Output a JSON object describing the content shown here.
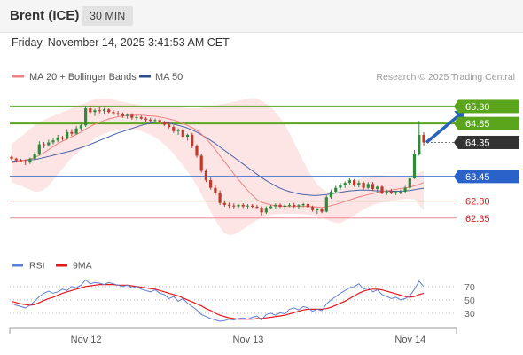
{
  "header": {
    "instrument": "Brent (ICE)",
    "timeframe": "30 MIN",
    "timestamp": "Friday, November 14, 2025 3:41:53 AM CET"
  },
  "legend": {
    "ma20_label": "MA 20 + Bollinger Bands",
    "ma50_label": "MA 50",
    "credit": "Research © 2025 Trading Central",
    "rsi_label": "RSI",
    "rsi_ma_label": "9MA"
  },
  "colors": {
    "candle_up": "#2e8b3a",
    "candle_down": "#c0392b",
    "bollinger_fill": "#fde2e2",
    "ma20": "#f08080",
    "ma50": "#4a63a8",
    "resistance": "#5aa51c",
    "pivot": "#2a62c9",
    "support": "#e88a8a",
    "last_price": "#333333",
    "rsi": "#5b7fd6",
    "rsi_ma": "#e8141a",
    "arrow": "#2962b9"
  },
  "chart_data": [
    {
      "type": "candlestick",
      "x_labels": [
        "Nov 12",
        "Nov 13",
        "Nov 14"
      ],
      "ylim": [
        61.9,
        65.65
      ],
      "candles_ohlc": [
        [
          63.97,
          64.0,
          63.88,
          63.92
        ],
        [
          63.92,
          63.95,
          63.84,
          63.88
        ],
        [
          63.88,
          63.92,
          63.82,
          63.85
        ],
        [
          63.85,
          63.9,
          63.75,
          63.82
        ],
        [
          63.82,
          63.95,
          63.78,
          63.92
        ],
        [
          63.92,
          64.1,
          63.88,
          64.05
        ],
        [
          64.05,
          64.38,
          64.0,
          64.3
        ],
        [
          64.3,
          64.36,
          64.2,
          64.28
        ],
        [
          64.28,
          64.42,
          64.24,
          64.35
        ],
        [
          64.35,
          64.48,
          64.3,
          64.4
        ],
        [
          64.4,
          64.55,
          64.35,
          64.48
        ],
        [
          64.48,
          64.52,
          64.4,
          64.45
        ],
        [
          64.45,
          64.7,
          64.42,
          64.62
        ],
        [
          64.62,
          64.7,
          64.52,
          64.58
        ],
        [
          64.58,
          64.78,
          64.55,
          64.72
        ],
        [
          64.72,
          64.85,
          64.65,
          64.8
        ],
        [
          64.8,
          65.3,
          64.76,
          65.25
        ],
        [
          65.25,
          65.32,
          65.1,
          65.15
        ],
        [
          65.15,
          65.24,
          65.05,
          65.2
        ],
        [
          65.2,
          65.28,
          65.12,
          65.18
        ],
        [
          65.18,
          65.26,
          65.1,
          65.22
        ],
        [
          65.22,
          65.25,
          65.12,
          65.15
        ],
        [
          65.15,
          65.2,
          65.08,
          65.12
        ],
        [
          65.12,
          65.18,
          65.05,
          65.1
        ],
        [
          65.1,
          65.14,
          65.0,
          65.05
        ],
        [
          65.05,
          65.12,
          64.98,
          65.08
        ],
        [
          65.08,
          65.12,
          64.95,
          65.0
        ],
        [
          65.0,
          65.06,
          64.94,
          65.02
        ],
        [
          65.02,
          65.06,
          64.95,
          64.98
        ],
        [
          64.98,
          65.02,
          64.9,
          64.95
        ],
        [
          64.95,
          65.0,
          64.88,
          64.92
        ],
        [
          64.92,
          64.98,
          64.86,
          64.94
        ],
        [
          64.94,
          64.98,
          64.85,
          64.88
        ],
        [
          64.88,
          64.92,
          64.78,
          64.82
        ],
        [
          64.82,
          64.88,
          64.72,
          64.76
        ],
        [
          64.76,
          64.8,
          64.6,
          64.65
        ],
        [
          64.65,
          64.72,
          64.55,
          64.68
        ],
        [
          64.68,
          64.72,
          64.45,
          64.5
        ],
        [
          64.5,
          64.58,
          64.4,
          64.55
        ],
        [
          64.55,
          64.6,
          64.2,
          64.25
        ],
        [
          64.25,
          64.3,
          63.95,
          64.0
        ],
        [
          64.0,
          64.05,
          63.55,
          63.6
        ],
        [
          63.6,
          63.65,
          63.3,
          63.35
        ],
        [
          63.35,
          63.42,
          63.1,
          63.15
        ],
        [
          63.15,
          63.22,
          62.95,
          63.02
        ],
        [
          63.02,
          63.08,
          62.7,
          62.75
        ],
        [
          62.75,
          62.82,
          62.65,
          62.7
        ],
        [
          62.7,
          62.76,
          62.62,
          62.68
        ],
        [
          62.68,
          62.74,
          62.6,
          62.66
        ],
        [
          62.66,
          62.72,
          62.62,
          62.7
        ],
        [
          62.7,
          62.74,
          62.62,
          62.66
        ],
        [
          62.66,
          62.72,
          62.6,
          62.68
        ],
        [
          62.68,
          62.72,
          62.62,
          62.65
        ],
        [
          62.65,
          62.7,
          62.58,
          62.63
        ],
        [
          62.63,
          62.66,
          62.42,
          62.5
        ],
        [
          62.5,
          62.66,
          62.46,
          62.62
        ],
        [
          62.62,
          62.7,
          62.58,
          62.66
        ],
        [
          62.66,
          62.74,
          62.6,
          62.7
        ],
        [
          62.7,
          62.74,
          62.62,
          62.65
        ],
        [
          62.65,
          62.72,
          62.6,
          62.68
        ],
        [
          62.68,
          62.74,
          62.64,
          62.7
        ],
        [
          62.7,
          62.75,
          62.62,
          62.66
        ],
        [
          62.66,
          62.72,
          62.6,
          62.69
        ],
        [
          62.69,
          62.75,
          62.64,
          62.72
        ],
        [
          62.72,
          62.76,
          62.62,
          62.64
        ],
        [
          62.64,
          62.68,
          62.52,
          62.56
        ],
        [
          62.56,
          62.62,
          62.46,
          62.58
        ],
        [
          62.58,
          62.62,
          62.48,
          62.52
        ],
        [
          62.52,
          62.95,
          62.5,
          62.9
        ],
        [
          62.9,
          63.1,
          62.86,
          63.05
        ],
        [
          63.05,
          63.2,
          63.0,
          63.15
        ],
        [
          63.15,
          63.28,
          63.1,
          63.22
        ],
        [
          63.22,
          63.32,
          63.15,
          63.28
        ],
        [
          63.28,
          63.4,
          63.22,
          63.35
        ],
        [
          63.35,
          63.38,
          63.18,
          63.22
        ],
        [
          63.22,
          63.34,
          63.16,
          63.28
        ],
        [
          63.28,
          63.32,
          63.1,
          63.15
        ],
        [
          63.15,
          63.3,
          63.12,
          63.25
        ],
        [
          63.25,
          63.3,
          63.08,
          63.12
        ],
        [
          63.12,
          63.2,
          63.02,
          63.18
        ],
        [
          63.18,
          63.22,
          62.98,
          63.02
        ],
        [
          63.02,
          63.1,
          62.96,
          63.06
        ],
        [
          63.06,
          63.12,
          62.98,
          63.02
        ],
        [
          63.02,
          63.08,
          62.96,
          63.04
        ],
        [
          63.04,
          63.1,
          62.98,
          63.05
        ],
        [
          63.05,
          63.2,
          63.0,
          63.15
        ],
        [
          63.15,
          63.45,
          63.1,
          63.4
        ],
        [
          63.4,
          64.15,
          63.38,
          64.05
        ],
        [
          64.05,
          64.92,
          64.0,
          64.55
        ],
        [
          64.55,
          64.62,
          64.25,
          64.35
        ]
      ],
      "series": [
        {
          "name": "MA 20",
          "values": [
            63.8,
            63.84,
            63.87,
            63.89,
            63.91,
            63.95,
            64.01,
            64.08,
            64.16,
            64.24,
            64.32,
            64.38,
            64.44,
            64.5,
            64.56,
            64.62,
            64.7,
            64.77,
            64.83,
            64.88,
            64.93,
            64.97,
            65.0,
            65.03,
            65.05,
            65.06,
            65.07,
            65.07,
            65.07,
            65.06,
            65.05,
            65.04,
            65.02,
            65.0,
            64.97,
            64.94,
            64.9,
            64.85,
            64.8,
            64.74,
            64.67,
            64.57,
            64.45,
            64.31,
            64.16,
            64.0,
            63.84,
            63.68,
            63.52,
            63.37,
            63.22,
            63.08,
            62.95,
            62.84,
            62.77,
            62.73,
            62.7,
            62.68,
            62.67,
            62.66,
            62.66,
            62.66,
            62.66,
            62.66,
            62.66,
            62.65,
            62.64,
            62.63,
            62.65,
            62.68,
            62.71,
            62.75,
            62.79,
            62.83,
            62.87,
            62.91,
            62.94,
            62.97,
            63.0,
            63.03,
            63.05,
            63.07,
            63.09,
            63.11,
            63.13,
            63.15,
            63.17,
            63.2,
            63.24,
            63.29
          ]
        },
        {
          "name": "MA 50",
          "values": [
            63.85,
            63.86,
            63.87,
            63.88,
            63.89,
            63.9,
            63.92,
            63.95,
            63.98,
            64.01,
            64.04,
            64.07,
            64.1,
            64.13,
            64.17,
            64.21,
            64.25,
            64.3,
            64.35,
            64.4,
            64.45,
            64.5,
            64.55,
            64.6,
            64.64,
            64.68,
            64.72,
            64.76,
            64.8,
            64.83,
            64.86,
            64.88,
            64.89,
            64.88,
            64.86,
            64.83,
            64.8,
            64.77,
            64.73,
            64.68,
            64.62,
            64.55,
            64.48,
            64.4,
            64.32,
            64.23,
            64.14,
            64.05,
            63.96,
            63.87,
            63.78,
            63.69,
            63.6,
            63.51,
            63.42,
            63.34,
            63.27,
            63.2,
            63.14,
            63.09,
            63.05,
            63.02,
            62.99,
            62.97,
            62.96,
            62.95,
            62.95,
            62.96,
            62.97,
            62.99,
            63.01,
            63.03,
            63.05,
            63.07,
            63.08,
            63.09,
            63.09,
            63.09,
            63.08,
            63.07,
            63.07,
            63.06,
            63.06,
            63.06,
            63.06,
            63.07,
            63.08,
            63.1,
            63.12,
            63.14
          ]
        },
        {
          "name": "Bollinger Upper",
          "values": [
            64.3,
            64.4,
            64.5,
            64.6,
            64.7,
            64.8,
            64.88,
            64.95,
            65.0,
            65.05,
            65.1,
            65.15,
            65.2,
            65.25,
            65.3,
            65.35,
            65.4,
            65.45,
            65.48,
            65.5,
            65.5,
            65.5,
            65.48,
            65.45,
            65.42,
            65.4,
            65.37,
            65.35,
            65.33,
            65.32,
            65.31,
            65.3,
            65.3,
            65.3,
            65.3,
            65.29,
            65.28,
            65.27,
            65.26,
            65.25,
            65.25,
            65.26,
            65.28,
            65.3,
            65.32,
            65.35,
            65.38,
            65.4,
            65.42,
            65.45,
            65.48,
            65.5,
            65.52,
            65.5,
            65.45,
            65.38,
            65.28,
            65.15,
            65.0,
            64.82,
            64.6,
            64.35,
            64.1,
            63.85,
            63.62,
            63.42,
            63.25,
            63.12,
            63.05,
            63.02,
            63.05,
            63.1,
            63.18,
            63.25,
            63.32,
            63.38,
            63.42,
            63.45,
            63.47,
            63.48,
            63.48,
            63.47,
            63.46,
            63.45,
            63.45,
            63.46,
            63.48,
            63.5,
            63.55,
            63.6
          ]
        },
        {
          "name": "Bollinger Lower",
          "values": [
            63.3,
            63.25,
            63.2,
            63.15,
            63.1,
            63.05,
            63.05,
            63.1,
            63.2,
            63.35,
            63.5,
            63.65,
            63.8,
            63.95,
            64.05,
            64.15,
            64.25,
            64.35,
            64.45,
            64.52,
            64.58,
            64.62,
            64.65,
            64.68,
            64.7,
            64.7,
            64.7,
            64.68,
            64.65,
            64.6,
            64.55,
            64.48,
            64.4,
            64.3,
            64.18,
            64.05,
            63.9,
            63.75,
            63.58,
            63.4,
            63.2,
            62.98,
            62.75,
            62.52,
            62.3,
            62.1,
            61.95,
            61.9,
            61.92,
            61.98,
            62.06,
            62.14,
            62.22,
            62.3,
            62.36,
            62.4,
            62.43,
            62.45,
            62.46,
            62.46,
            62.46,
            62.46,
            62.46,
            62.45,
            62.44,
            62.42,
            62.4,
            62.38,
            62.32,
            62.26,
            62.22,
            62.22,
            62.28,
            62.35,
            62.42,
            62.5,
            62.58,
            62.64,
            62.7,
            62.74,
            62.76,
            62.78,
            62.8,
            62.82,
            62.84,
            62.86,
            62.86,
            62.84,
            62.7,
            62.55
          ]
        }
      ],
      "levels": [
        {
          "label": "65.30",
          "value": 65.3,
          "kind": "resistance"
        },
        {
          "label": "64.85",
          "value": 64.85,
          "kind": "resistance"
        },
        {
          "label": "64.35",
          "value": 64.35,
          "kind": "last"
        },
        {
          "label": "63.45",
          "value": 63.45,
          "kind": "pivot"
        },
        {
          "label": "62.80",
          "value": 62.8,
          "kind": "support"
        },
        {
          "label": "62.35",
          "value": 62.35,
          "kind": "support"
        }
      ],
      "arrow": {
        "from_value": 64.35,
        "to_value": 65.3,
        "direction": "up"
      }
    },
    {
      "type": "line",
      "name": "RSI",
      "ylim": [
        10,
        95
      ],
      "y_ticks": [
        "70",
        "50",
        "30"
      ],
      "series": [
        {
          "name": "RSI",
          "values": [
            45,
            42,
            40,
            38,
            42,
            48,
            55,
            60,
            63,
            60,
            62,
            66,
            64,
            70,
            68,
            72,
            80,
            74,
            76,
            75,
            73,
            76,
            74,
            72,
            70,
            72,
            68,
            70,
            66,
            64,
            62,
            65,
            60,
            58,
            52,
            55,
            48,
            52,
            45,
            40,
            35,
            28,
            25,
            22,
            20,
            18,
            19,
            21,
            20,
            22,
            23,
            21,
            24,
            26,
            20,
            28,
            30,
            27,
            31,
            29,
            36,
            38,
            35,
            40,
            38,
            33,
            36,
            34,
            44,
            50,
            55,
            60,
            64,
            68,
            70,
            74,
            66,
            68,
            62,
            65,
            58,
            55,
            52,
            54,
            50,
            52,
            56,
            66,
            78,
            70
          ]
        },
        {
          "name": "9MA",
          "values": [
            48,
            46,
            44,
            43,
            42,
            43,
            46,
            49,
            52,
            54,
            57,
            60,
            62,
            64,
            66,
            68,
            70,
            71,
            72,
            73,
            73,
            73,
            73,
            72,
            72,
            72,
            71,
            70,
            69,
            68,
            67,
            66,
            64,
            62,
            60,
            58,
            56,
            53,
            50,
            47,
            44,
            41,
            37,
            34,
            30,
            27,
            25,
            23,
            22,
            21,
            21,
            21,
            21,
            22,
            22,
            23,
            24,
            25,
            26,
            27,
            29,
            31,
            33,
            35,
            36,
            36,
            36,
            36,
            37,
            39,
            42,
            45,
            48,
            52,
            56,
            60,
            63,
            65,
            66,
            66,
            65,
            63,
            61,
            59,
            57,
            55,
            54,
            55,
            58,
            60
          ]
        }
      ]
    }
  ]
}
